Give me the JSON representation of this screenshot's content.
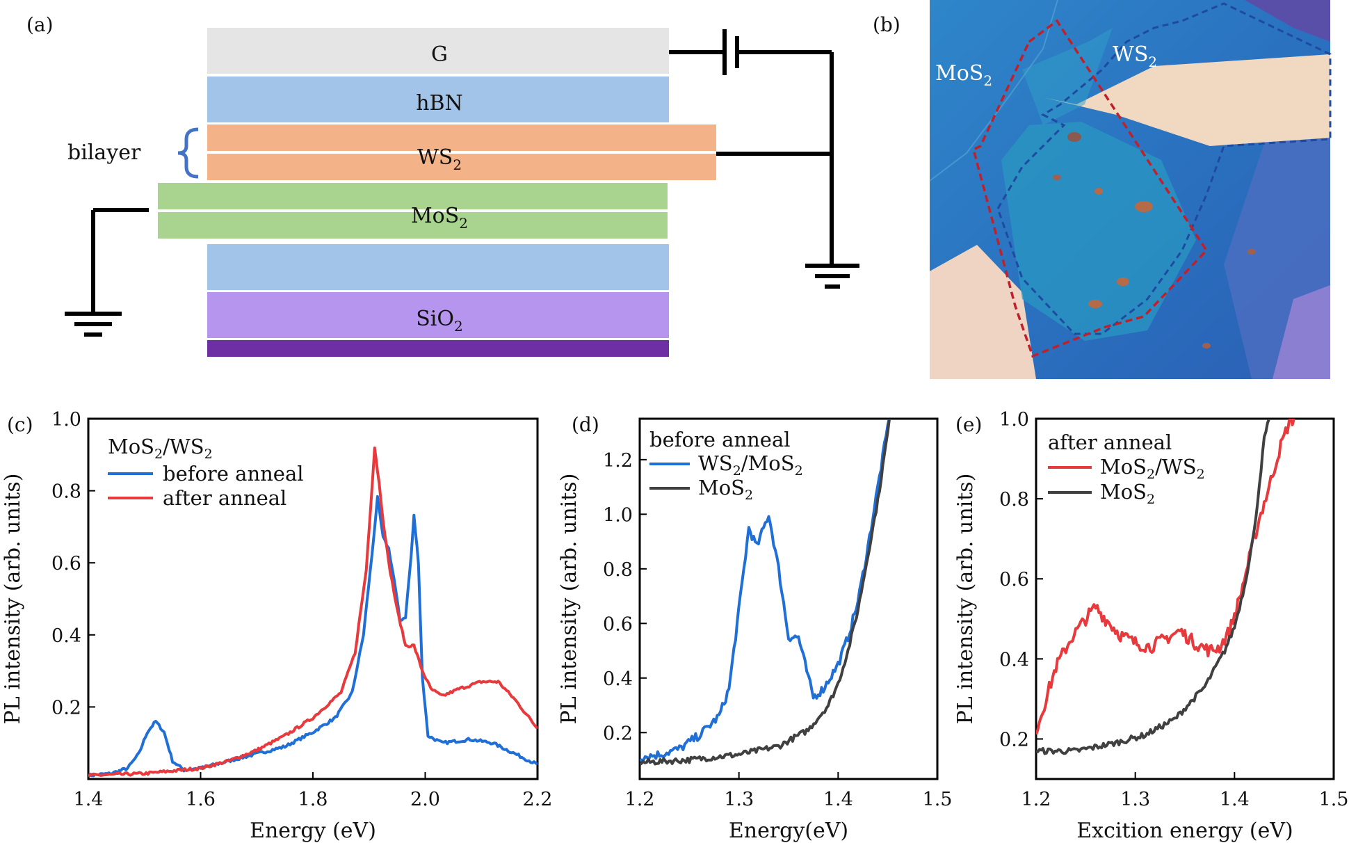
{
  "panel_labels": [
    "(a)",
    "(b)",
    "(c)",
    "(d)",
    "(e)"
  ],
  "schematic": {
    "layers": {
      "g": "G",
      "hbn": "hBN",
      "ws2_base": "WS",
      "mos2_base": "MoS",
      "sio2_base": "SiO",
      "subscript": "2"
    },
    "bilayer_label": "bilayer",
    "colors": {
      "g": "#e6e5e5",
      "hbn": "#a1c4e8",
      "ws2": "#f3b287",
      "mos2": "#a9d48f",
      "sio2": "#b595ee",
      "si": "#6e2fa4",
      "brace": "#4472c4"
    }
  },
  "micrograph": {
    "label_mos2_base": "MoS",
    "label_ws2_base": "WS",
    "subscript": "2"
  },
  "chart_data": [
    {
      "panel": "(c)",
      "type": "line",
      "xlabel": "Energy (eV)",
      "ylabel": "PL intensity (arb. units)",
      "xlim": [
        1.4,
        2.2
      ],
      "ylim": [
        0.0,
        1.0
      ],
      "xticks": [
        "1.4",
        "1.6",
        "1.8",
        "2.0",
        "2.2"
      ],
      "yticks": [
        "0.2",
        "0.4",
        "0.6",
        "0.8",
        "1.0"
      ],
      "legend_title_base": "MoS",
      "legend_title_mid": "/WS",
      "legend_title_sub": "2",
      "legend_placement": "top-left",
      "series": [
        {
          "name": "before anneal",
          "color": "#1f6fd6",
          "points": [
            [
              1.4,
              0.01
            ],
            [
              1.44,
              0.015
            ],
            [
              1.47,
              0.03
            ],
            [
              1.49,
              0.07
            ],
            [
              1.505,
              0.13
            ],
            [
              1.52,
              0.16
            ],
            [
              1.535,
              0.13
            ],
            [
              1.55,
              0.05
            ],
            [
              1.57,
              0.025
            ],
            [
              1.6,
              0.03
            ],
            [
              1.65,
              0.05
            ],
            [
              1.7,
              0.07
            ],
            [
              1.75,
              0.09
            ],
            [
              1.8,
              0.13
            ],
            [
              1.84,
              0.17
            ],
            [
              1.87,
              0.24
            ],
            [
              1.89,
              0.4
            ],
            [
              1.905,
              0.62
            ],
            [
              1.915,
              0.78
            ],
            [
              1.925,
              0.67
            ],
            [
              1.935,
              0.64
            ],
            [
              1.945,
              0.55
            ],
            [
              1.955,
              0.44
            ],
            [
              1.965,
              0.45
            ],
            [
              1.975,
              0.62
            ],
            [
              1.98,
              0.73
            ],
            [
              1.988,
              0.6
            ],
            [
              1.995,
              0.28
            ],
            [
              2.005,
              0.12
            ],
            [
              2.03,
              0.1
            ],
            [
              2.08,
              0.11
            ],
            [
              2.12,
              0.1
            ],
            [
              2.16,
              0.07
            ],
            [
              2.2,
              0.04
            ]
          ]
        },
        {
          "name": "after anneal",
          "color": "#e8393c",
          "points": [
            [
              1.4,
              0.01
            ],
            [
              1.5,
              0.015
            ],
            [
              1.6,
              0.03
            ],
            [
              1.65,
              0.05
            ],
            [
              1.7,
              0.08
            ],
            [
              1.75,
              0.12
            ],
            [
              1.8,
              0.17
            ],
            [
              1.85,
              0.24
            ],
            [
              1.875,
              0.35
            ],
            [
              1.895,
              0.58
            ],
            [
              1.91,
              0.92
            ],
            [
              1.918,
              0.82
            ],
            [
              1.925,
              0.72
            ],
            [
              1.935,
              0.6
            ],
            [
              1.95,
              0.47
            ],
            [
              1.965,
              0.37
            ],
            [
              1.98,
              0.37
            ],
            [
              1.995,
              0.3
            ],
            [
              2.01,
              0.25
            ],
            [
              2.03,
              0.23
            ],
            [
              2.06,
              0.25
            ],
            [
              2.1,
              0.27
            ],
            [
              2.13,
              0.27
            ],
            [
              2.16,
              0.22
            ],
            [
              2.2,
              0.14
            ]
          ]
        }
      ]
    },
    {
      "panel": "(d)",
      "type": "line",
      "xlabel": "Energy(eV)",
      "ylabel": "PL intensity (arb. units)",
      "xlim": [
        1.2,
        1.5
      ],
      "ylim": [
        0.03,
        1.35
      ],
      "xticks": [
        "1.2",
        "1.3",
        "1.4",
        "1.5"
      ],
      "yticks": [
        "0.2",
        "0.4",
        "0.6",
        "0.8",
        "1.0",
        "1.2"
      ],
      "legend_title": "before anneal",
      "legend_placement": "top-left",
      "series": [
        {
          "name_base": "WS",
          "name_mid": "/MoS",
          "name_sub": "2",
          "color": "#1f6fd6",
          "points": [
            [
              1.2,
              0.11
            ],
            [
              1.22,
              0.12
            ],
            [
              1.24,
              0.14
            ],
            [
              1.26,
              0.19
            ],
            [
              1.28,
              0.26
            ],
            [
              1.29,
              0.36
            ],
            [
              1.3,
              0.65
            ],
            [
              1.31,
              0.95
            ],
            [
              1.318,
              0.88
            ],
            [
              1.33,
              1.0
            ],
            [
              1.34,
              0.8
            ],
            [
              1.35,
              0.55
            ],
            [
              1.36,
              0.55
            ],
            [
              1.37,
              0.4
            ],
            [
              1.375,
              0.33
            ],
            [
              1.385,
              0.36
            ],
            [
              1.4,
              0.45
            ],
            [
              1.41,
              0.55
            ],
            [
              1.42,
              0.68
            ],
            [
              1.43,
              0.88
            ],
            [
              1.44,
              1.1
            ],
            [
              1.45,
              1.32
            ],
            [
              1.455,
              1.45
            ]
          ]
        },
        {
          "name": "MoS",
          "name_sub": "2",
          "color": "#404040",
          "points": [
            [
              1.2,
              0.09
            ],
            [
              1.25,
              0.1
            ],
            [
              1.3,
              0.12
            ],
            [
              1.34,
              0.15
            ],
            [
              1.37,
              0.21
            ],
            [
              1.39,
              0.3
            ],
            [
              1.4,
              0.38
            ],
            [
              1.41,
              0.5
            ],
            [
              1.42,
              0.65
            ],
            [
              1.43,
              0.85
            ],
            [
              1.44,
              1.05
            ],
            [
              1.45,
              1.3
            ],
            [
              1.455,
              1.42
            ]
          ]
        }
      ]
    },
    {
      "panel": "(e)",
      "type": "line",
      "xlabel": "Excition energy (eV)",
      "ylabel": "PL intensity (arb. units)",
      "xlim": [
        1.2,
        1.5
      ],
      "ylim": [
        0.1,
        1.0
      ],
      "xticks": [
        "1.2",
        "1.3",
        "1.4",
        "1.5"
      ],
      "yticks": [
        "0.2",
        "0.4",
        "0.6",
        "0.8",
        "1.0"
      ],
      "legend_title": "after anneal",
      "legend_placement": "top-left",
      "series": [
        {
          "name_base": "MoS",
          "name_mid": "/WS",
          "name_sub": "2",
          "color": "#e8393c",
          "points": [
            [
              1.2,
              0.22
            ],
            [
              1.21,
              0.3
            ],
            [
              1.22,
              0.38
            ],
            [
              1.235,
              0.45
            ],
            [
              1.25,
              0.5
            ],
            [
              1.26,
              0.53
            ],
            [
              1.27,
              0.5
            ],
            [
              1.285,
              0.46
            ],
            [
              1.3,
              0.44
            ],
            [
              1.315,
              0.43
            ],
            [
              1.33,
              0.45
            ],
            [
              1.345,
              0.47
            ],
            [
              1.36,
              0.44
            ],
            [
              1.375,
              0.42
            ],
            [
              1.385,
              0.43
            ],
            [
              1.395,
              0.47
            ],
            [
              1.405,
              0.55
            ],
            [
              1.415,
              0.65
            ],
            [
              1.425,
              0.75
            ],
            [
              1.435,
              0.83
            ],
            [
              1.445,
              0.92
            ],
            [
              1.455,
              0.99
            ],
            [
              1.46,
              1.0
            ]
          ]
        },
        {
          "name": "MoS",
          "name_sub": "2",
          "color": "#404040",
          "points": [
            [
              1.2,
              0.17
            ],
            [
              1.24,
              0.17
            ],
            [
              1.28,
              0.19
            ],
            [
              1.31,
              0.21
            ],
            [
              1.34,
              0.25
            ],
            [
              1.37,
              0.33
            ],
            [
              1.39,
              0.42
            ],
            [
              1.4,
              0.48
            ],
            [
              1.41,
              0.58
            ],
            [
              1.42,
              0.72
            ],
            [
              1.43,
              0.95
            ],
            [
              1.435,
              1.0
            ]
          ]
        }
      ]
    }
  ]
}
